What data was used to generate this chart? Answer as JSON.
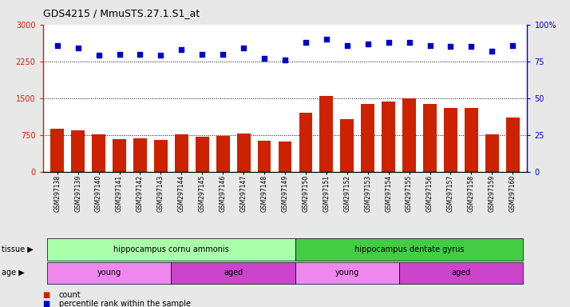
{
  "title": "GDS4215 / MmuSTS.27.1.S1_at",
  "samples": [
    "GSM297138",
    "GSM297139",
    "GSM297140",
    "GSM297141",
    "GSM297142",
    "GSM297143",
    "GSM297144",
    "GSM297145",
    "GSM297146",
    "GSM297147",
    "GSM297148",
    "GSM297149",
    "GSM297150",
    "GSM297151",
    "GSM297152",
    "GSM297153",
    "GSM297154",
    "GSM297155",
    "GSM297156",
    "GSM297157",
    "GSM297158",
    "GSM297159",
    "GSM297160"
  ],
  "bar_values": [
    880,
    840,
    760,
    670,
    690,
    645,
    760,
    710,
    730,
    790,
    630,
    625,
    1200,
    1540,
    1080,
    1390,
    1430,
    1500,
    1390,
    1300,
    1310,
    760,
    1100
  ],
  "dot_values": [
    86,
    84,
    79,
    80,
    80,
    79,
    83,
    80,
    80,
    84,
    77,
    76,
    88,
    90,
    86,
    87,
    88,
    88,
    86,
    85,
    85,
    82,
    86
  ],
  "bar_color": "#cc2200",
  "dot_color": "#0000cc",
  "left_ylim": [
    0,
    3000
  ],
  "right_ylim": [
    0,
    100
  ],
  "left_yticks": [
    0,
    750,
    1500,
    2250,
    3000
  ],
  "right_yticks": [
    0,
    25,
    50,
    75,
    100
  ],
  "right_ytick_labels": [
    "0",
    "25",
    "50",
    "75",
    "100%"
  ],
  "hlines": [
    750,
    1500,
    2250
  ],
  "tissue_labels": [
    {
      "label": "hippocampus cornu ammonis",
      "start": 0,
      "end": 12,
      "color": "#aaffaa"
    },
    {
      "label": "hippocampus dentate gyrus",
      "start": 12,
      "end": 23,
      "color": "#44cc44"
    }
  ],
  "age_labels": [
    {
      "label": "young",
      "start": 0,
      "end": 6,
      "color": "#ee88ee"
    },
    {
      "label": "aged",
      "start": 6,
      "end": 12,
      "color": "#cc44cc"
    },
    {
      "label": "young",
      "start": 12,
      "end": 17,
      "color": "#ee88ee"
    },
    {
      "label": "aged",
      "start": 17,
      "end": 23,
      "color": "#cc44cc"
    }
  ],
  "tissue_row_label": "tissue",
  "age_row_label": "age",
  "legend_items": [
    {
      "label": "count",
      "color": "#cc2200"
    },
    {
      "label": "percentile rank within the sample",
      "color": "#0000cc"
    }
  ],
  "background_color": "#e8e8e8",
  "plot_bg_color": "#ffffff"
}
